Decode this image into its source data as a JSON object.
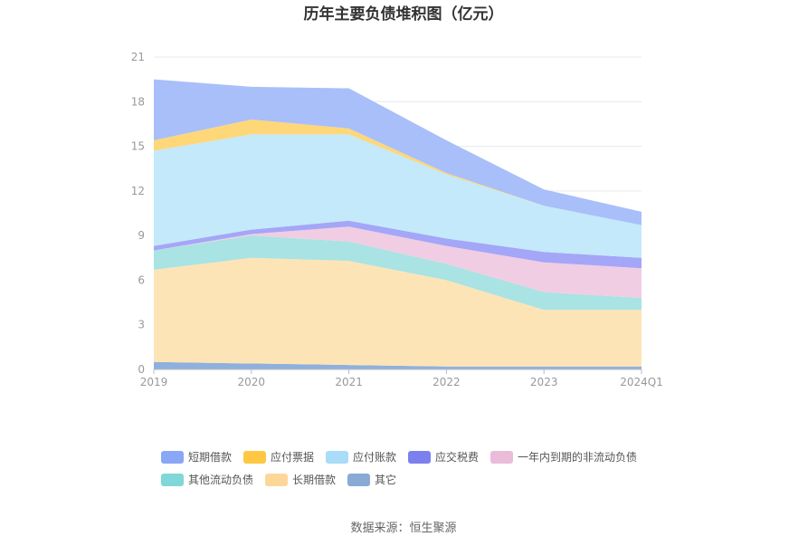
{
  "chart_data": {
    "type": "area",
    "title": "历年主要负债堆积图（亿元）",
    "xlabel": "",
    "ylabel": "",
    "categories": [
      "2019",
      "2020",
      "2021",
      "2022",
      "2023",
      "2024Q1"
    ],
    "yticks": [
      "0",
      "3",
      "6",
      "9",
      "12",
      "15",
      "18",
      "21"
    ],
    "ylim": [
      0,
      21
    ],
    "stacked": true,
    "grid": true,
    "legend_position": "bottom",
    "series": [
      {
        "name": "其它",
        "color": "#8fb0dc",
        "values": [
          0.5,
          0.4,
          0.3,
          0.2,
          0.2,
          0.2
        ]
      },
      {
        "name": "长期借款",
        "color": "#fde4b6",
        "values": [
          6.2,
          7.1,
          7.0,
          5.8,
          3.8,
          3.8
        ]
      },
      {
        "name": "其他流动负债",
        "color": "#a9e3e3",
        "values": [
          1.3,
          1.5,
          1.3,
          1.1,
          1.2,
          0.8
        ]
      },
      {
        "name": "一年内到期的非流动负债",
        "color": "#f0cde3",
        "values": [
          0.0,
          0.1,
          1.0,
          1.2,
          2.0,
          2.0
        ]
      },
      {
        "name": "应交税费",
        "color": "#a4a6f7",
        "values": [
          0.3,
          0.3,
          0.4,
          0.5,
          0.7,
          0.7
        ]
      },
      {
        "name": "应付账款",
        "color": "#c3e9fb",
        "values": [
          6.4,
          6.4,
          5.8,
          4.3,
          3.1,
          2.2
        ]
      },
      {
        "name": "应付票据",
        "color": "#fed779",
        "values": [
          0.7,
          1.0,
          0.4,
          0.1,
          0.0,
          0.0
        ]
      },
      {
        "name": "短期借款",
        "color": "#a8bff9",
        "values": [
          4.1,
          2.2,
          2.7,
          2.2,
          1.1,
          0.9
        ]
      }
    ],
    "legend": [
      {
        "name": "短期借款",
        "color": "#8aa6f6"
      },
      {
        "name": "应付票据",
        "color": "#fec842"
      },
      {
        "name": "应付账款",
        "color": "#a8dcf8"
      },
      {
        "name": "应交税费",
        "color": "#7c80ef"
      },
      {
        "name": "一年内到期的非流动负债",
        "color": "#ebbbda"
      },
      {
        "name": "其他流动负债",
        "color": "#80d7d7"
      },
      {
        "name": "长期借款",
        "color": "#fdd79a"
      },
      {
        "name": "其它",
        "color": "#8aaad6"
      }
    ]
  },
  "footer": {
    "source": "数据来源：恒生聚源"
  }
}
